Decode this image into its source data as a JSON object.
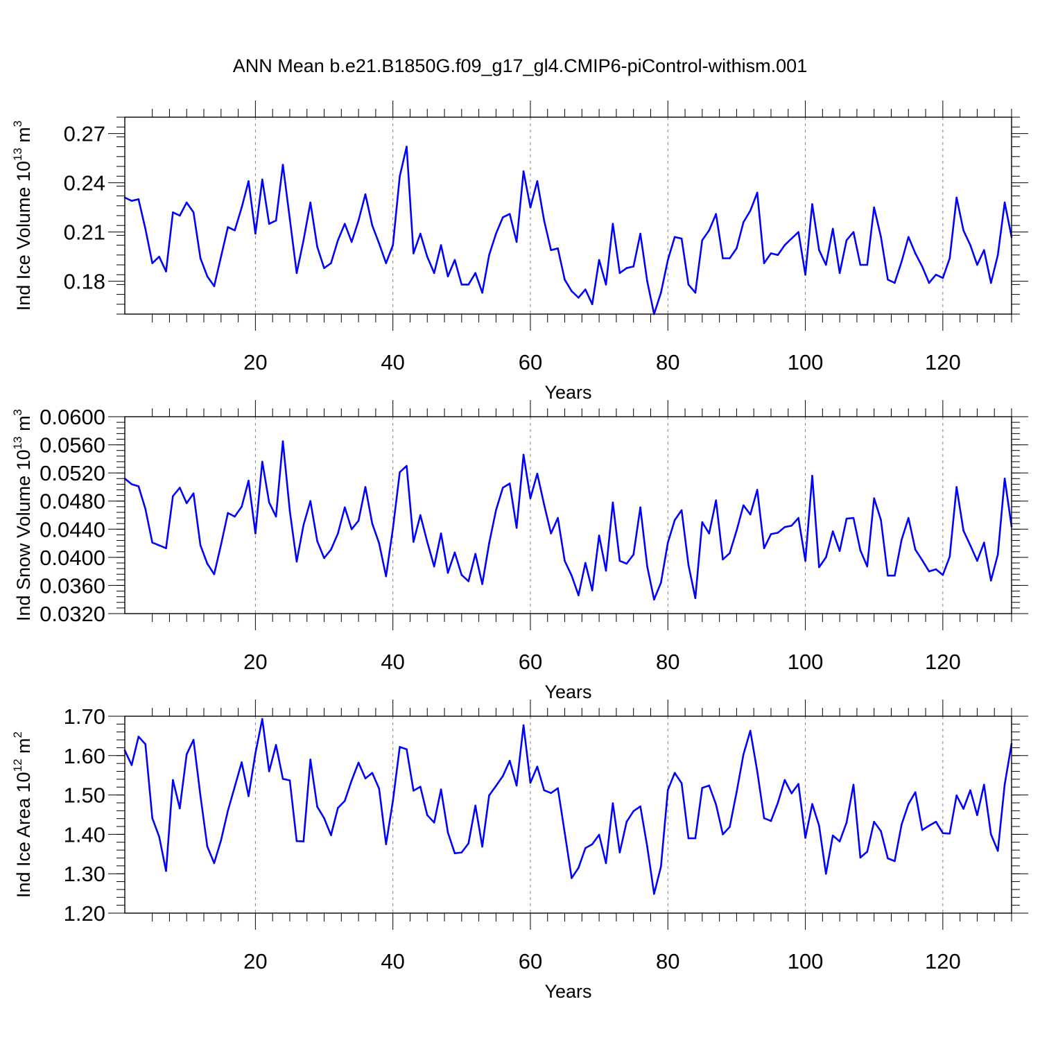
{
  "title": "ANN Mean b.e21.B1850G.f09_g17_gl4.CMIP6-piControl-withism.001",
  "colors": {
    "line": "#0000ff",
    "frame": "#000000",
    "grid": "#808080"
  },
  "chart_data": [
    {
      "type": "line",
      "name": "ice-volume",
      "xlabel": "Years",
      "ylabel_main": "Ind Ice Volume 10",
      "ylabel_exp": "13",
      "ylabel_unit": " m",
      "ylabel_unit_exp": "3",
      "xlim": [
        1,
        130
      ],
      "ylim": [
        0.16,
        0.28
      ],
      "x_ticks": [
        20,
        40,
        60,
        80,
        100,
        120
      ],
      "y_ticks": [
        0.18,
        0.21,
        0.24,
        0.27
      ],
      "y_tick_labels": [
        "0.18",
        "0.21",
        "0.24",
        "0.27"
      ],
      "grid_vertical": true,
      "series": [
        {
          "values": [
            0.231,
            0.229,
            0.23,
            0.212,
            0.191,
            0.195,
            0.186,
            0.222,
            0.22,
            0.228,
            0.222,
            0.194,
            0.183,
            0.177,
            0.195,
            0.213,
            0.211,
            0.225,
            0.241,
            0.209,
            0.242,
            0.215,
            0.217,
            0.251,
            0.218,
            0.185,
            0.205,
            0.228,
            0.201,
            0.188,
            0.191,
            0.205,
            0.215,
            0.204,
            0.217,
            0.233,
            0.214,
            0.203,
            0.191,
            0.202,
            0.244,
            0.262,
            0.197,
            0.209,
            0.195,
            0.185,
            0.202,
            0.183,
            0.193,
            0.178,
            0.178,
            0.185,
            0.173,
            0.196,
            0.209,
            0.219,
            0.221,
            0.204,
            0.247,
            0.225,
            0.241,
            0.217,
            0.199,
            0.2,
            0.181,
            0.174,
            0.17,
            0.175,
            0.166,
            0.193,
            0.178,
            0.215,
            0.185,
            0.188,
            0.189,
            0.209,
            0.18,
            0.16,
            0.173,
            0.193,
            0.207,
            0.206,
            0.178,
            0.173,
            0.205,
            0.211,
            0.221,
            0.194,
            0.194,
            0.2,
            0.216,
            0.223,
            0.234,
            0.191,
            0.197,
            0.196,
            0.202,
            0.206,
            0.21,
            0.184,
            0.227,
            0.199,
            0.19,
            0.212,
            0.185,
            0.205,
            0.21,
            0.19,
            0.19,
            0.225,
            0.207,
            0.181,
            0.179,
            0.192,
            0.207,
            0.197,
            0.189,
            0.179,
            0.184,
            0.182,
            0.194,
            0.231,
            0.211,
            0.202,
            0.19,
            0.199,
            0.179,
            0.196,
            0.228,
            0.207
          ]
        }
      ]
    },
    {
      "type": "line",
      "name": "snow-volume",
      "xlabel": "Years",
      "ylabel_main": "Ind Snow Volume 10",
      "ylabel_exp": "13",
      "ylabel_unit": " m",
      "ylabel_unit_exp": "3",
      "xlim": [
        1,
        130
      ],
      "ylim": [
        0.032,
        0.06
      ],
      "x_ticks": [
        20,
        40,
        60,
        80,
        100,
        120
      ],
      "y_ticks": [
        0.032,
        0.036,
        0.04,
        0.044,
        0.048,
        0.052,
        0.056,
        0.06
      ],
      "y_tick_labels": [
        "0.0320",
        "0.0360",
        "0.0400",
        "0.0440",
        "0.0480",
        "0.0520",
        "0.0560",
        "0.0600"
      ],
      "grid_vertical": true,
      "series": [
        {
          "values": [
            0.0512,
            0.0504,
            0.0501,
            0.0469,
            0.0421,
            0.0417,
            0.0413,
            0.0487,
            0.0499,
            0.0477,
            0.0491,
            0.0417,
            0.0391,
            0.0376,
            0.0418,
            0.0463,
            0.0458,
            0.0472,
            0.0509,
            0.0434,
            0.0536,
            0.0478,
            0.0458,
            0.0565,
            0.0466,
            0.0394,
            0.0446,
            0.048,
            0.0423,
            0.0399,
            0.0411,
            0.0434,
            0.0471,
            0.044,
            0.0452,
            0.05,
            0.0448,
            0.042,
            0.0373,
            0.0441,
            0.0521,
            0.053,
            0.0422,
            0.046,
            0.0422,
            0.0387,
            0.0434,
            0.0378,
            0.0407,
            0.0375,
            0.0366,
            0.0405,
            0.0362,
            0.042,
            0.0467,
            0.0499,
            0.0505,
            0.0442,
            0.0546,
            0.0484,
            0.0519,
            0.0475,
            0.0434,
            0.0456,
            0.0395,
            0.0374,
            0.0346,
            0.0392,
            0.0353,
            0.0431,
            0.0381,
            0.0478,
            0.0395,
            0.0391,
            0.0404,
            0.0471,
            0.0387,
            0.034,
            0.0364,
            0.0421,
            0.0453,
            0.0467,
            0.0389,
            0.0342,
            0.045,
            0.0434,
            0.0481,
            0.0397,
            0.0406,
            0.0438,
            0.0474,
            0.0461,
            0.0496,
            0.0413,
            0.0433,
            0.0435,
            0.0443,
            0.0445,
            0.0456,
            0.0395,
            0.0516,
            0.0386,
            0.04,
            0.0437,
            0.0409,
            0.0455,
            0.0456,
            0.041,
            0.0387,
            0.0484,
            0.0453,
            0.0374,
            0.0374,
            0.0425,
            0.0456,
            0.0411,
            0.0396,
            0.038,
            0.0383,
            0.0375,
            0.0401,
            0.05,
            0.0438,
            0.0417,
            0.0395,
            0.0421,
            0.0367,
            0.0404,
            0.0512,
            0.0444
          ]
        }
      ]
    },
    {
      "type": "line",
      "name": "ice-area",
      "xlabel": "Years",
      "ylabel_main": "Ind Ice Area 10",
      "ylabel_exp": "12",
      "ylabel_unit": " m",
      "ylabel_unit_exp": "2",
      "xlim": [
        1,
        130
      ],
      "ylim": [
        1.2,
        1.7
      ],
      "x_ticks": [
        20,
        40,
        60,
        80,
        100,
        120
      ],
      "y_ticks": [
        1.2,
        1.3,
        1.4,
        1.5,
        1.6,
        1.7
      ],
      "y_tick_labels": [
        "1.20",
        "1.30",
        "1.40",
        "1.50",
        "1.60",
        "1.70"
      ],
      "grid_vertical": true,
      "series": [
        {
          "values": [
            1.613,
            1.576,
            1.648,
            1.629,
            1.441,
            1.394,
            1.307,
            1.538,
            1.466,
            1.603,
            1.64,
            1.498,
            1.369,
            1.327,
            1.385,
            1.46,
            1.521,
            1.583,
            1.497,
            1.606,
            1.693,
            1.56,
            1.627,
            1.541,
            1.537,
            1.383,
            1.382,
            1.59,
            1.47,
            1.441,
            1.398,
            1.467,
            1.485,
            1.537,
            1.582,
            1.542,
            1.556,
            1.516,
            1.375,
            1.485,
            1.622,
            1.616,
            1.511,
            1.521,
            1.449,
            1.43,
            1.514,
            1.405,
            1.352,
            1.354,
            1.377,
            1.473,
            1.369,
            1.499,
            1.523,
            1.548,
            1.587,
            1.524,
            1.677,
            1.531,
            1.572,
            1.512,
            1.505,
            1.517,
            1.404,
            1.289,
            1.315,
            1.365,
            1.375,
            1.399,
            1.327,
            1.479,
            1.354,
            1.432,
            1.459,
            1.471,
            1.369,
            1.249,
            1.318,
            1.513,
            1.556,
            1.53,
            1.39,
            1.39,
            1.518,
            1.524,
            1.476,
            1.4,
            1.419,
            1.507,
            1.603,
            1.663,
            1.56,
            1.441,
            1.434,
            1.48,
            1.538,
            1.504,
            1.528,
            1.391,
            1.477,
            1.422,
            1.3,
            1.397,
            1.382,
            1.43,
            1.526,
            1.341,
            1.356,
            1.432,
            1.408,
            1.339,
            1.332,
            1.425,
            1.477,
            1.507,
            1.411,
            1.422,
            1.432,
            1.403,
            1.402,
            1.499,
            1.465,
            1.512,
            1.449,
            1.526,
            1.4,
            1.358,
            1.527,
            1.63
          ]
        }
      ]
    }
  ]
}
